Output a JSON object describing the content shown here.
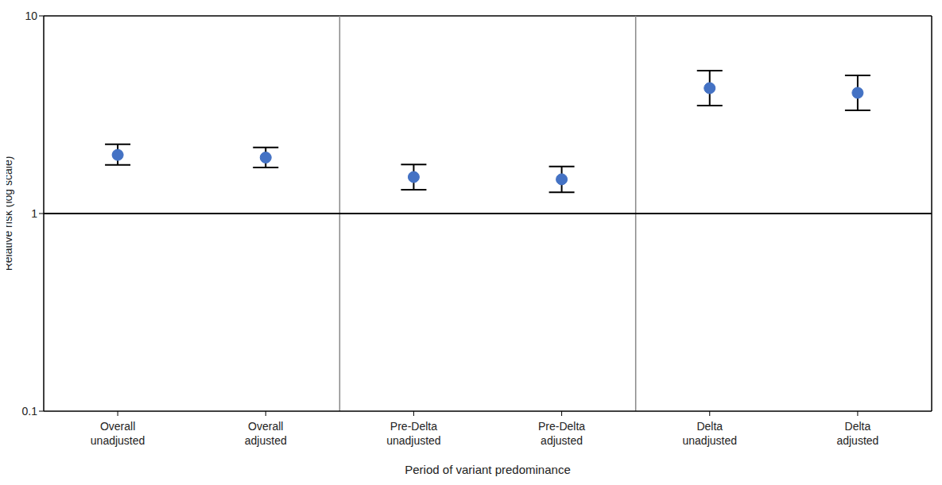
{
  "chart_data": {
    "type": "scatter",
    "y_label": "Relative risk (log scale)",
    "x_label": "Period of variant predominance",
    "categories": [
      "Overall unadjusted",
      "Overall adjusted",
      "Pre-Delta unadjusted",
      "Pre-Delta adjusted",
      "Delta unadjusted",
      "Delta adjusted"
    ],
    "values": [
      1.98,
      1.92,
      1.53,
      1.49,
      4.31,
      4.08
    ],
    "lower": [
      1.76,
      1.71,
      1.32,
      1.28,
      3.52,
      3.33
    ],
    "upper": [
      2.24,
      2.16,
      1.77,
      1.73,
      5.28,
      5.0
    ],
    "color": "#4472c4",
    "marker": "circle",
    "ylim": [
      0.1,
      10
    ],
    "yticks": [
      0.1,
      1,
      10
    ],
    "log": "y",
    "grid": false,
    "reference_line": 1
  }
}
